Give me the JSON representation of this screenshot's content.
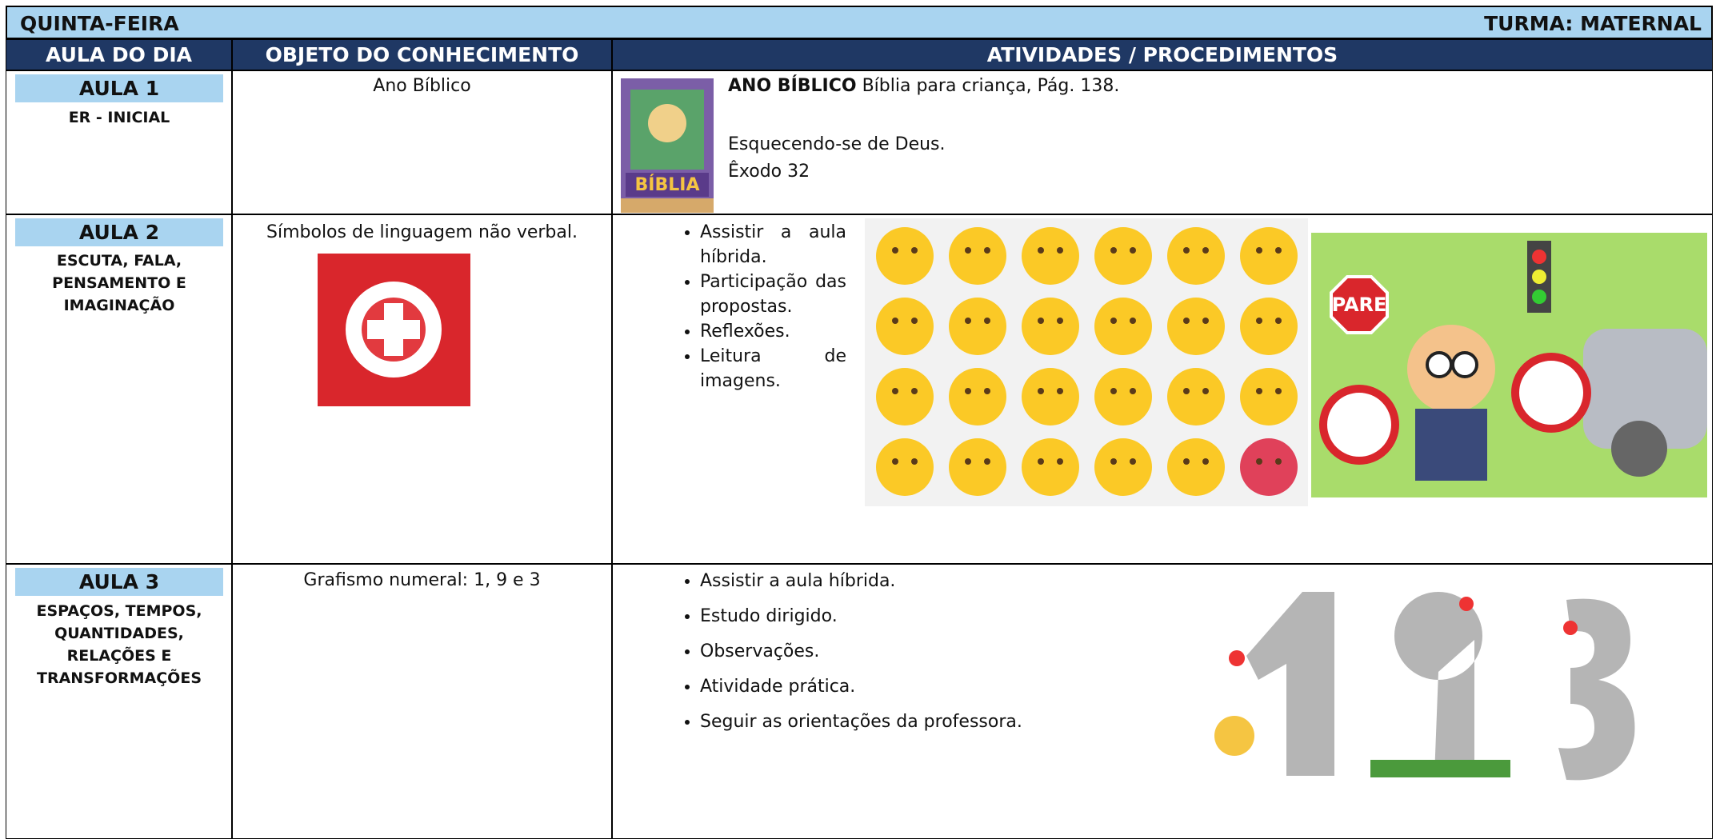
{
  "header": {
    "day": "QUINTA-FEIRA",
    "class": "TURMA: MATERNAL"
  },
  "columns": [
    "AULA DO DIA",
    "OBJETO DO CONHECIMENTO",
    "ATIVIDADES / PROCEDIMENTOS"
  ],
  "rows": [
    {
      "lesson": "AULA 1",
      "area": "ER - INICIAL",
      "object": "Ano Bíblico",
      "activity": {
        "title": "ANO BÍBLICO",
        "text": "Bíblia para criança, Pág. 138.",
        "lines": [
          "Esquecendo-se de Deus.",
          "Êxodo 32"
        ]
      }
    },
    {
      "lesson": "AULA 2",
      "area": "ESCUTA, FALA, PENSAMENTO E IMAGINAÇÃO",
      "object": "Símbolos de linguagem não verbal.",
      "activity": {
        "items": [
          "Assistir a aula híbrida.",
          "Participação das propostas.",
          "Reflexões.",
          "Leitura de imagens."
        ]
      }
    },
    {
      "lesson": "AULA 3",
      "area": "ESPAÇOS, TEMPOS, QUANTIDADES, RELAÇÕES E TRANSFORMAÇÕES",
      "object": "Grafismo numeral: 1, 9 e 3",
      "activity": {
        "items": [
          "Assistir a aula híbrida.",
          "Estudo dirigido.",
          "Observações.",
          "Atividade prática.",
          "Seguir as orientações da professora."
        ]
      }
    }
  ],
  "images": {
    "bible_cover": "BÍBLIA",
    "stop_sign": "PARE"
  }
}
